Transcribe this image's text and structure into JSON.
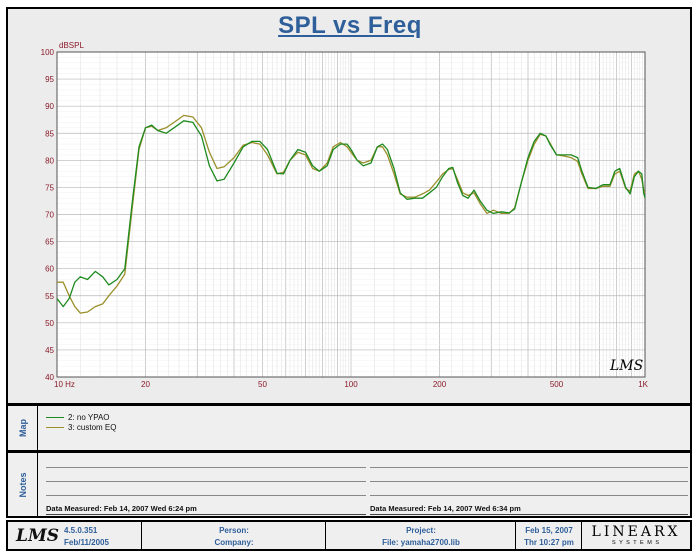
{
  "chart_data": {
    "type": "line",
    "title": "SPL vs Freq",
    "ylabel": "dBSPL",
    "xscale": "log",
    "xlim": [
      10,
      1000
    ],
    "ylim": [
      40,
      100
    ],
    "y_ticks": [
      40,
      45,
      50,
      55,
      60,
      65,
      70,
      75,
      80,
      85,
      90,
      95,
      100
    ],
    "x_tick_labels": [
      {
        "value": 10,
        "label": "10 Hz"
      },
      {
        "value": 20,
        "label": "20"
      },
      {
        "value": 50,
        "label": "50"
      },
      {
        "value": 100,
        "label": "100"
      },
      {
        "value": 200,
        "label": "200"
      },
      {
        "value": 500,
        "label": "500"
      },
      {
        "value": 1000,
        "label": "1K"
      }
    ],
    "grid": true,
    "series": [
      {
        "name": "2: no YPAO",
        "color": "#1f8a1f",
        "points": [
          [
            10,
            54.5
          ],
          [
            10.5,
            53
          ],
          [
            11,
            54.5
          ],
          [
            11.5,
            57.5
          ],
          [
            12,
            58.5
          ],
          [
            12.7,
            58
          ],
          [
            13.5,
            59.5
          ],
          [
            14.3,
            58.5
          ],
          [
            15,
            57
          ],
          [
            16,
            58
          ],
          [
            17,
            60
          ],
          [
            18,
            72
          ],
          [
            19,
            82.5
          ],
          [
            20,
            86
          ],
          [
            21,
            86.5
          ],
          [
            22,
            85.5
          ],
          [
            23.5,
            85
          ],
          [
            25,
            86
          ],
          [
            27,
            87.3
          ],
          [
            29,
            87
          ],
          [
            31,
            84.5
          ],
          [
            33,
            79
          ],
          [
            35,
            76.2
          ],
          [
            37,
            76.5
          ],
          [
            40,
            79.5
          ],
          [
            43,
            82.5
          ],
          [
            46,
            83.5
          ],
          [
            49,
            83.5
          ],
          [
            52,
            82
          ],
          [
            56,
            77.6
          ],
          [
            59,
            77.5
          ],
          [
            62,
            80
          ],
          [
            66,
            82
          ],
          [
            70,
            81.5
          ],
          [
            74,
            79
          ],
          [
            78,
            78
          ],
          [
            83,
            79
          ],
          [
            87,
            82
          ],
          [
            92,
            83
          ],
          [
            97,
            83
          ],
          [
            100,
            82
          ],
          [
            105,
            80
          ],
          [
            110,
            79
          ],
          [
            117,
            79.5
          ],
          [
            123,
            82.5
          ],
          [
            128,
            83
          ],
          [
            133,
            82
          ],
          [
            140,
            78.5
          ],
          [
            147,
            74
          ],
          [
            155,
            72.8
          ],
          [
            165,
            73
          ],
          [
            175,
            73
          ],
          [
            185,
            74
          ],
          [
            195,
            75
          ],
          [
            205,
            77
          ],
          [
            215,
            78.5
          ],
          [
            222,
            78.7
          ],
          [
            230,
            76
          ],
          [
            240,
            73.5
          ],
          [
            250,
            73
          ],
          [
            262,
            74.5
          ],
          [
            275,
            72.5
          ],
          [
            290,
            70.8
          ],
          [
            305,
            70.2
          ],
          [
            325,
            70.5
          ],
          [
            345,
            70.3
          ],
          [
            360,
            71
          ],
          [
            380,
            76
          ],
          [
            400,
            80.5
          ],
          [
            420,
            83.5
          ],
          [
            440,
            85
          ],
          [
            460,
            84.5
          ],
          [
            475,
            83
          ],
          [
            500,
            81
          ],
          [
            530,
            81
          ],
          [
            560,
            81
          ],
          [
            590,
            80.5
          ],
          [
            610,
            78
          ],
          [
            640,
            75
          ],
          [
            680,
            74.8
          ],
          [
            720,
            75.5
          ],
          [
            760,
            75.5
          ],
          [
            790,
            78
          ],
          [
            820,
            78.5
          ],
          [
            860,
            75
          ],
          [
            890,
            73.8
          ],
          [
            920,
            77
          ],
          [
            950,
            78
          ],
          [
            975,
            77.5
          ],
          [
            990,
            74
          ],
          [
            1000,
            73
          ]
        ]
      },
      {
        "name": "3: custom EQ",
        "color": "#9a8f2a",
        "points": [
          [
            10,
            57.5
          ],
          [
            10.5,
            57.5
          ],
          [
            11,
            55
          ],
          [
            11.5,
            53
          ],
          [
            12,
            51.8
          ],
          [
            12.7,
            52
          ],
          [
            13.5,
            53
          ],
          [
            14.3,
            53.5
          ],
          [
            15,
            55
          ],
          [
            16,
            56.8
          ],
          [
            17,
            59
          ],
          [
            18,
            71
          ],
          [
            19,
            82
          ],
          [
            20,
            86
          ],
          [
            21,
            86.3
          ],
          [
            22,
            85.5
          ],
          [
            23.5,
            86
          ],
          [
            25,
            87
          ],
          [
            27,
            88.3
          ],
          [
            29,
            88
          ],
          [
            31,
            86
          ],
          [
            33,
            81.5
          ],
          [
            35,
            78.5
          ],
          [
            37,
            78.8
          ],
          [
            40,
            80.5
          ],
          [
            43,
            82.8
          ],
          [
            46,
            83.3
          ],
          [
            49,
            83
          ],
          [
            52,
            81
          ],
          [
            56,
            77.5
          ],
          [
            59,
            77.8
          ],
          [
            62,
            80
          ],
          [
            66,
            81.5
          ],
          [
            70,
            81
          ],
          [
            74,
            78.5
          ],
          [
            78,
            78
          ],
          [
            83,
            79.5
          ],
          [
            87,
            82.5
          ],
          [
            92,
            83.3
          ],
          [
            97,
            82.5
          ],
          [
            100,
            81.5
          ],
          [
            105,
            80
          ],
          [
            110,
            79.5
          ],
          [
            117,
            80
          ],
          [
            123,
            82.5
          ],
          [
            128,
            82.5
          ],
          [
            133,
            81
          ],
          [
            140,
            77.5
          ],
          [
            147,
            73.8
          ],
          [
            155,
            73.2
          ],
          [
            165,
            73.2
          ],
          [
            175,
            73.8
          ],
          [
            185,
            74.5
          ],
          [
            195,
            76
          ],
          [
            205,
            77.5
          ],
          [
            215,
            78.3
          ],
          [
            222,
            78.5
          ],
          [
            230,
            76.5
          ],
          [
            240,
            74
          ],
          [
            250,
            73.5
          ],
          [
            262,
            74
          ],
          [
            275,
            72
          ],
          [
            290,
            70.2
          ],
          [
            305,
            70.8
          ],
          [
            325,
            70.2
          ],
          [
            345,
            70.2
          ],
          [
            360,
            71.2
          ],
          [
            380,
            76
          ],
          [
            400,
            80
          ],
          [
            420,
            83
          ],
          [
            440,
            84.8
          ],
          [
            460,
            84.5
          ],
          [
            475,
            83.2
          ],
          [
            500,
            81
          ],
          [
            530,
            80.8
          ],
          [
            560,
            80.5
          ],
          [
            590,
            79.8
          ],
          [
            610,
            77.5
          ],
          [
            640,
            74.8
          ],
          [
            680,
            74.8
          ],
          [
            720,
            75.2
          ],
          [
            760,
            75.2
          ],
          [
            790,
            77.5
          ],
          [
            820,
            78
          ],
          [
            860,
            74.8
          ],
          [
            890,
            74.3
          ],
          [
            920,
            77.5
          ],
          [
            950,
            78
          ],
          [
            975,
            76.5
          ],
          [
            990,
            74.5
          ],
          [
            1000,
            74
          ]
        ]
      }
    ]
  },
  "map": {
    "label": "Map",
    "legend": [
      {
        "label": "2: no YPAO",
        "color": "#1f8a1f"
      },
      {
        "label": "3: custom EQ",
        "color": "#9a8f2a"
      }
    ]
  },
  "notes": {
    "label": "Notes",
    "left_measured": "Data Measured: Feb 14, 2007  Wed  6:24 pm",
    "right_measured": "Data Measured: Feb 14, 2007  Wed  6:34 pm"
  },
  "footer": {
    "logo": "LMS",
    "version": "4.5.0.351",
    "version_date": "Feb/11/2005",
    "person_label": "Person:",
    "company_label": "Company:",
    "project_label": "Project:",
    "file_label": "File: yamaha2700.lib",
    "date": "Feb 15, 2007",
    "day_time": "Thr 10:27 pm",
    "brand": "LINEARX",
    "brand_sub": "S Y S T E M S"
  },
  "watermark": "LMS"
}
